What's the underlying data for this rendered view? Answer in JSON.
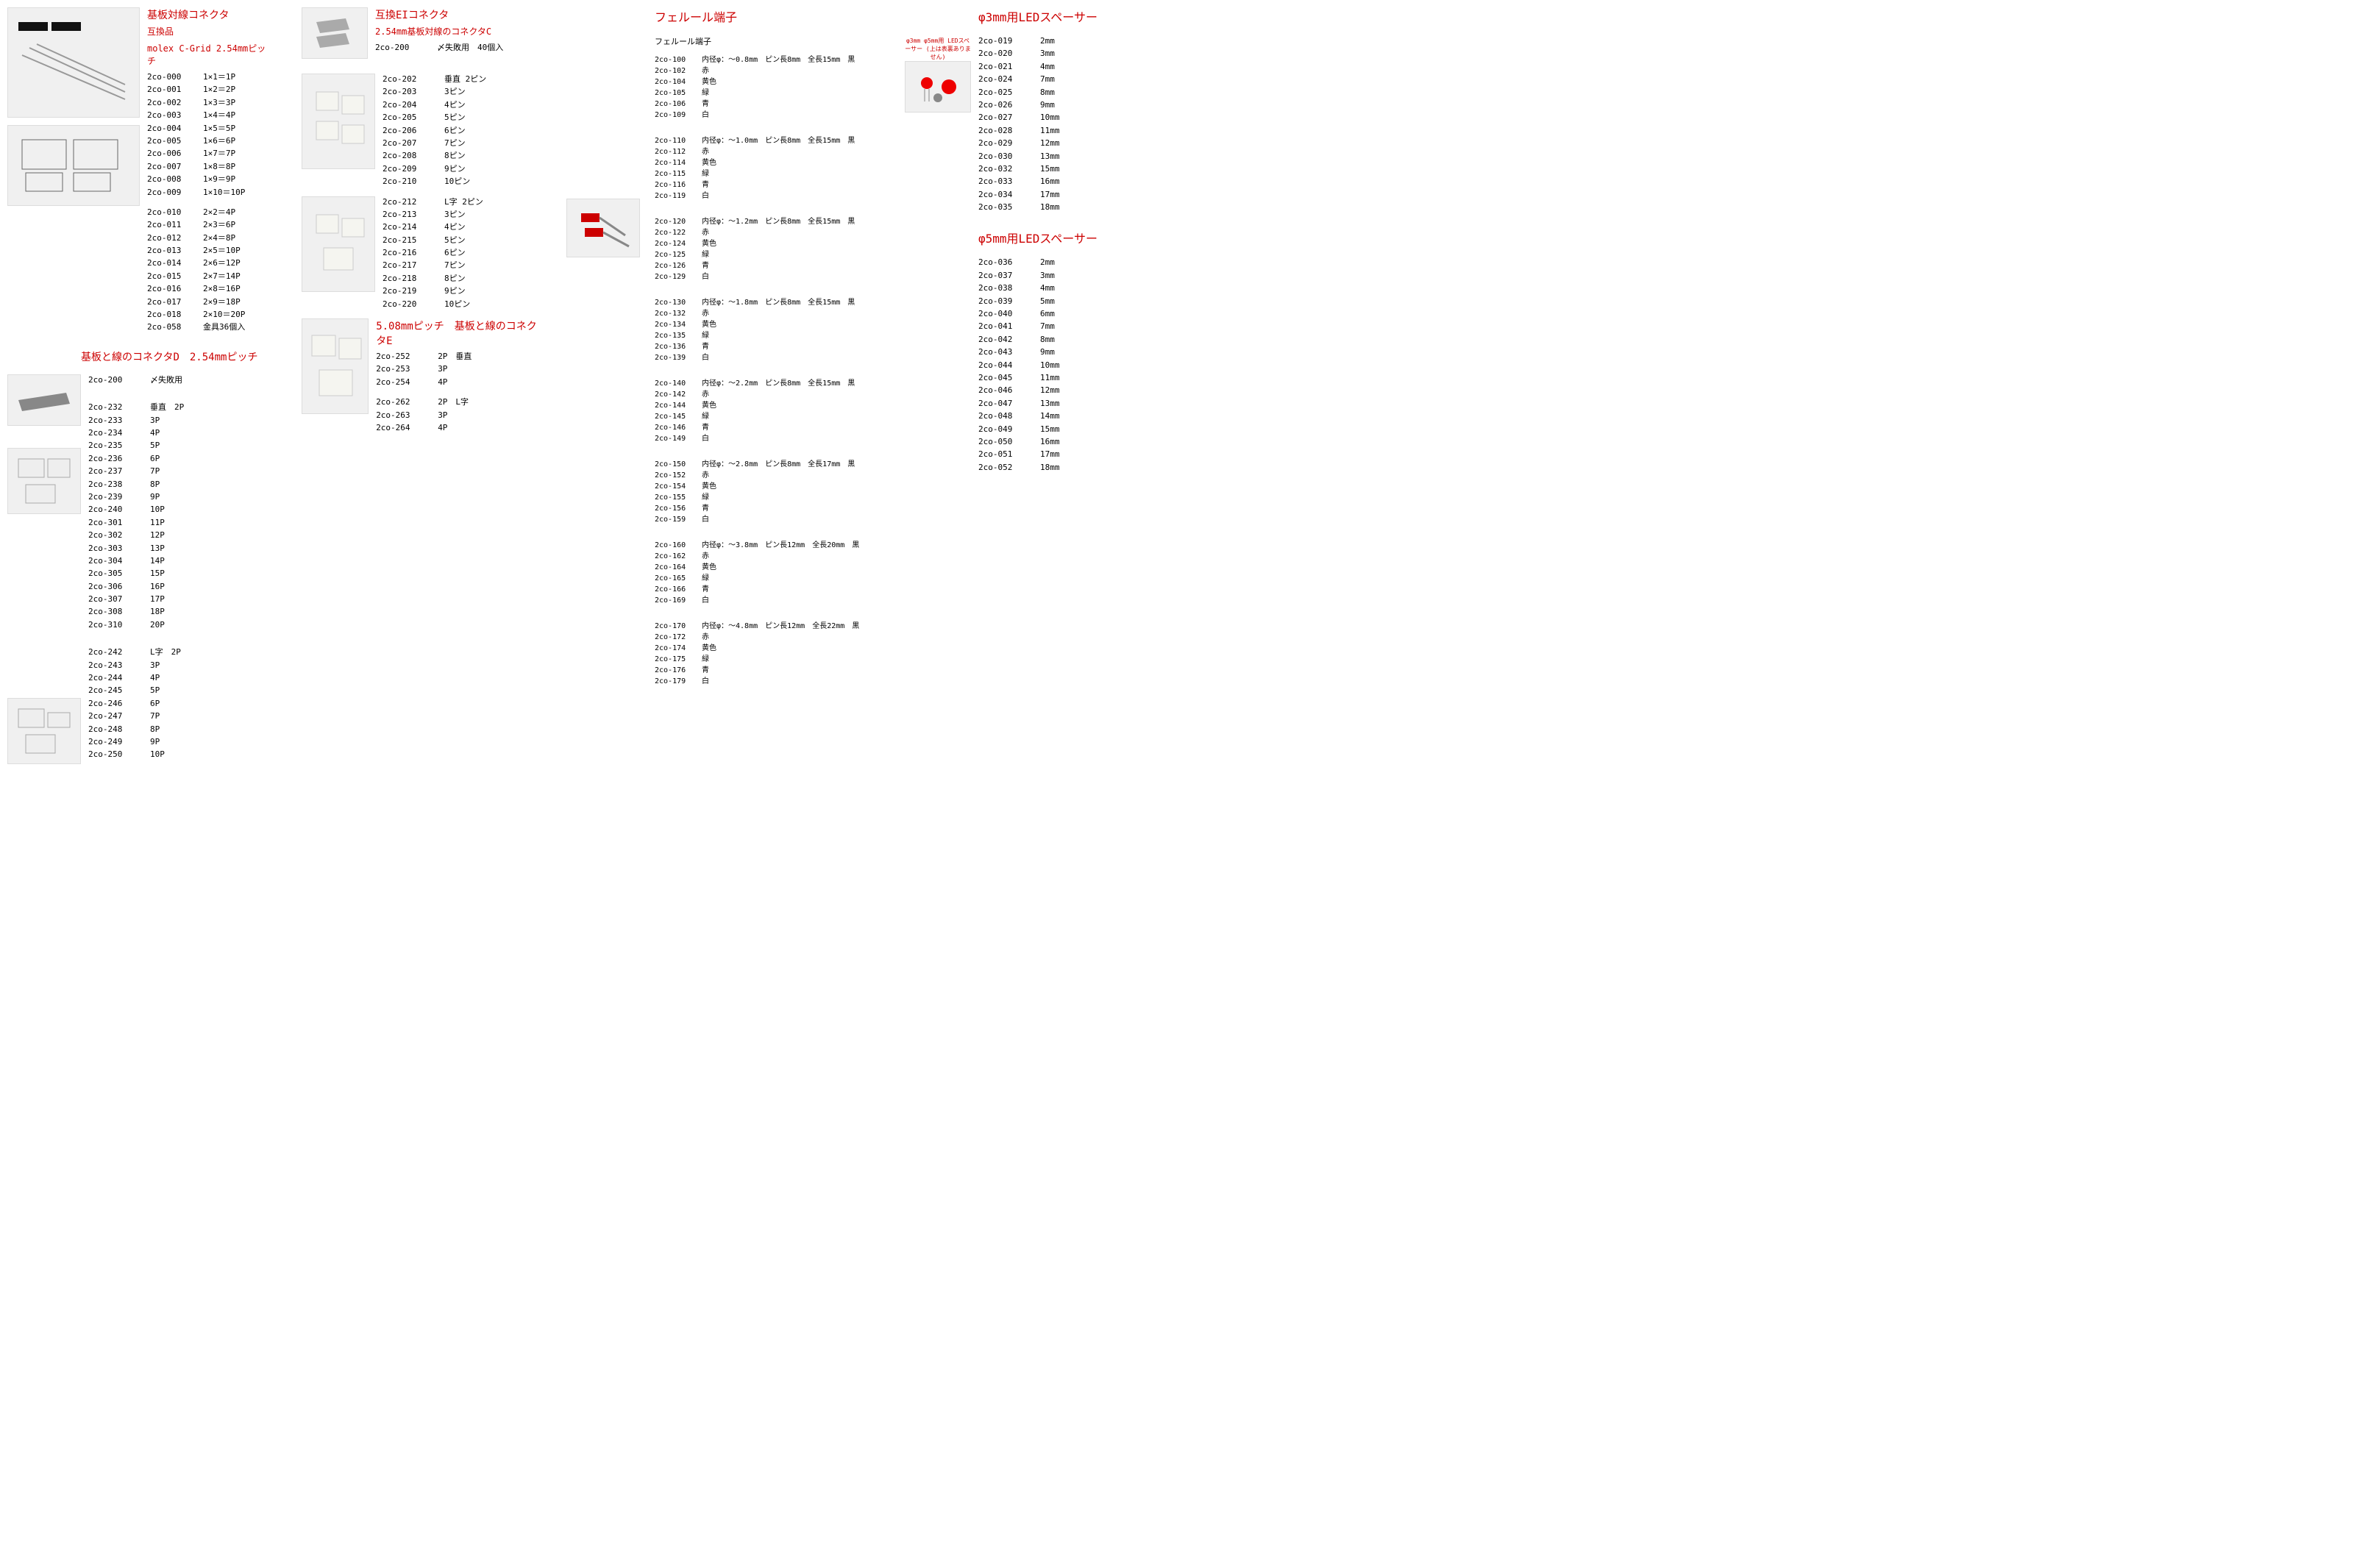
{
  "colors": {
    "title": "#cc0000",
    "text": "#000000",
    "bg": "#ffffff"
  },
  "col1": {
    "sectionA": {
      "title": "基板対線コネクタ",
      "sub1": "互換品",
      "sub2": "molex C-Grid 2.54mmピッチ",
      "itemsA": [
        {
          "code": "2co-000",
          "val": "1×1＝1P"
        },
        {
          "code": "2co-001",
          "val": "1×2＝2P"
        },
        {
          "code": "2co-002",
          "val": "1×3＝3P"
        },
        {
          "code": "2co-003",
          "val": "1×4＝4P"
        },
        {
          "code": "2co-004",
          "val": "1×5＝5P"
        },
        {
          "code": "2co-005",
          "val": "1×6＝6P"
        },
        {
          "code": "2co-006",
          "val": "1×7＝7P"
        },
        {
          "code": "2co-007",
          "val": "1×8＝8P"
        },
        {
          "code": "2co-008",
          "val": "1×9＝9P"
        },
        {
          "code": "2co-009",
          "val": "1×10＝10P"
        }
      ],
      "itemsB": [
        {
          "code": "2co-010",
          "val": "2×2＝4P"
        },
        {
          "code": "2co-011",
          "val": "2×3＝6P"
        },
        {
          "code": "2co-012",
          "val": "2×4＝8P"
        },
        {
          "code": "2co-013",
          "val": "2×5＝10P"
        },
        {
          "code": "2co-014",
          "val": "2×6＝12P"
        },
        {
          "code": "2co-015",
          "val": "2×7＝14P"
        },
        {
          "code": "2co-016",
          "val": "2×8＝16P"
        },
        {
          "code": "2co-017",
          "val": "2×9＝18P"
        },
        {
          "code": "2co-018",
          "val": "2×10＝20P"
        },
        {
          "code": "2co-058",
          "val": "金具36個入"
        }
      ]
    },
    "sectionD": {
      "title": "基板と線のコネクタD　2.54mmピッチ",
      "fail": {
        "code": "2co-200",
        "val": "〆失敗用"
      },
      "vertical_label": "垂直",
      "vertical_first_val": "2P",
      "vertical": [
        {
          "code": "2co-232",
          "val": "垂直　2P"
        },
        {
          "code": "2co-233",
          "val": "3P"
        },
        {
          "code": "2co-234",
          "val": "4P"
        },
        {
          "code": "2co-235",
          "val": "5P"
        },
        {
          "code": "2co-236",
          "val": "6P"
        },
        {
          "code": "2co-237",
          "val": "7P"
        },
        {
          "code": "2co-238",
          "val": "8P"
        },
        {
          "code": "2co-239",
          "val": "9P"
        },
        {
          "code": "2co-240",
          "val": "10P"
        },
        {
          "code": "2co-301",
          "val": "11P"
        },
        {
          "code": "2co-302",
          "val": "12P"
        },
        {
          "code": "2co-303",
          "val": "13P"
        },
        {
          "code": "2co-304",
          "val": "14P"
        },
        {
          "code": "2co-305",
          "val": "15P"
        },
        {
          "code": "2co-306",
          "val": "16P"
        },
        {
          "code": "2co-307",
          "val": "17P"
        },
        {
          "code": "2co-308",
          "val": "18P"
        },
        {
          "code": "2co-310",
          "val": "20P"
        }
      ],
      "L": [
        {
          "code": "2co-242",
          "val": "L字　2P"
        },
        {
          "code": "2co-243",
          "val": "3P"
        },
        {
          "code": "2co-244",
          "val": "4P"
        },
        {
          "code": "2co-245",
          "val": "5P"
        },
        {
          "code": "2co-246",
          "val": "6P"
        },
        {
          "code": "2co-247",
          "val": "7P"
        },
        {
          "code": "2co-248",
          "val": "8P"
        },
        {
          "code": "2co-249",
          "val": "9P"
        },
        {
          "code": "2co-250",
          "val": "10P"
        }
      ]
    }
  },
  "col2": {
    "sectionEI": {
      "title": "互換EIコネクタ",
      "sub": "2.54mm基板対線のコネクタC",
      "fail": {
        "code": "2co-200",
        "val": "〆失敗用　40個入"
      },
      "vertical": [
        {
          "code": "2co-202",
          "val": "垂直 2ピン"
        },
        {
          "code": "2co-203",
          "val": "3ピン"
        },
        {
          "code": "2co-204",
          "val": "4ピン"
        },
        {
          "code": "2co-205",
          "val": "5ピン"
        },
        {
          "code": "2co-206",
          "val": "6ピン"
        },
        {
          "code": "2co-207",
          "val": "7ピン"
        },
        {
          "code": "2co-208",
          "val": "8ピン"
        },
        {
          "code": "2co-209",
          "val": "9ピン"
        },
        {
          "code": "2co-210",
          "val": "10ピン"
        }
      ],
      "L": [
        {
          "code": "2co-212",
          "val": "L字 2ピン"
        },
        {
          "code": "2co-213",
          "val": "3ピン"
        },
        {
          "code": "2co-214",
          "val": "4ピン"
        },
        {
          "code": "2co-215",
          "val": "5ピン"
        },
        {
          "code": "2co-216",
          "val": "6ピン"
        },
        {
          "code": "2co-217",
          "val": "7ピン"
        },
        {
          "code": "2co-218",
          "val": "8ピン"
        },
        {
          "code": "2co-219",
          "val": "9ピン"
        },
        {
          "code": "2co-220",
          "val": "10ピン"
        }
      ]
    },
    "sectionE": {
      "title": "5.08mmピッチ　基板と線のコネクタE",
      "vertical": [
        {
          "code": "2co-252",
          "val": "2P　垂直"
        },
        {
          "code": "2co-253",
          "val": "3P"
        },
        {
          "code": "2co-254",
          "val": "4P"
        }
      ],
      "L": [
        {
          "code": "2co-262",
          "val": "2P　L字"
        },
        {
          "code": "2co-263",
          "val": "3P"
        },
        {
          "code": "2co-264",
          "val": "4P"
        }
      ]
    }
  },
  "col3": {
    "title": "フェルール端子",
    "sub": "フェルール端子",
    "groups": [
      {
        "head": {
          "code": "2co-100",
          "val": "内径φ：～0.8mm　ピン長8mm　全長15mm　黒"
        },
        "rows": [
          {
            "code": "2co-102",
            "val": "赤"
          },
          {
            "code": "2co-104",
            "val": "黄色"
          },
          {
            "code": "2co-105",
            "val": "緑"
          },
          {
            "code": "2co-106",
            "val": "青"
          },
          {
            "code": "2co-109",
            "val": "白"
          }
        ]
      },
      {
        "head": {
          "code": "2co-110",
          "val": "内径φ：～1.0mm　ピン長8mm　全長15mm　黒"
        },
        "rows": [
          {
            "code": "2co-112",
            "val": "赤"
          },
          {
            "code": "2co-114",
            "val": "黄色"
          },
          {
            "code": "2co-115",
            "val": "緑"
          },
          {
            "code": "2co-116",
            "val": "青"
          },
          {
            "code": "2co-119",
            "val": "白"
          }
        ]
      },
      {
        "head": {
          "code": "2co-120",
          "val": "内径φ：～1.2mm　ピン長8mm　全長15mm　黒"
        },
        "rows": [
          {
            "code": "2co-122",
            "val": "赤"
          },
          {
            "code": "2co-124",
            "val": "黄色"
          },
          {
            "code": "2co-125",
            "val": "緑"
          },
          {
            "code": "2co-126",
            "val": "青"
          },
          {
            "code": "2co-129",
            "val": "白"
          }
        ]
      },
      {
        "head": {
          "code": "2co-130",
          "val": "内径φ：～1.8mm　ピン長8mm　全長15mm　黒"
        },
        "rows": [
          {
            "code": "2co-132",
            "val": "赤"
          },
          {
            "code": "2co-134",
            "val": "黄色"
          },
          {
            "code": "2co-135",
            "val": "緑"
          },
          {
            "code": "2co-136",
            "val": "青"
          },
          {
            "code": "2co-139",
            "val": "白"
          }
        ]
      },
      {
        "head": {
          "code": "2co-140",
          "val": "内径φ：～2.2mm　ピン長8mm　全長15mm　黒"
        },
        "rows": [
          {
            "code": "2co-142",
            "val": "赤"
          },
          {
            "code": "2co-144",
            "val": "黄色"
          },
          {
            "code": "2co-145",
            "val": "緑"
          },
          {
            "code": "2co-146",
            "val": "青"
          },
          {
            "code": "2co-149",
            "val": "白"
          }
        ]
      },
      {
        "head": {
          "code": "2co-150",
          "val": "内径φ：～2.8mm　ピン長8mm　全長17mm　黒"
        },
        "rows": [
          {
            "code": "2co-152",
            "val": "赤"
          },
          {
            "code": "2co-154",
            "val": "黄色"
          },
          {
            "code": "2co-155",
            "val": "緑"
          },
          {
            "code": "2co-156",
            "val": "青"
          },
          {
            "code": "2co-159",
            "val": "白"
          }
        ]
      },
      {
        "head": {
          "code": "2co-160",
          "val": "内径φ：～3.8mm　ピン長12mm　全長20mm　黒"
        },
        "rows": [
          {
            "code": "2co-162",
            "val": "赤"
          },
          {
            "code": "2co-164",
            "val": "黄色"
          },
          {
            "code": "2co-165",
            "val": "緑"
          },
          {
            "code": "2co-166",
            "val": "青"
          },
          {
            "code": "2co-169",
            "val": "白"
          }
        ]
      },
      {
        "head": {
          "code": "2co-170",
          "val": "内径φ：～4.8mm　ピン長12mm　全長22mm　黒"
        },
        "rows": [
          {
            "code": "2co-172",
            "val": "赤"
          },
          {
            "code": "2co-174",
            "val": "黄色"
          },
          {
            "code": "2co-175",
            "val": "緑"
          },
          {
            "code": "2co-176",
            "val": "青"
          },
          {
            "code": "2co-179",
            "val": "白"
          }
        ]
      }
    ]
  },
  "col4": {
    "led3": {
      "title": "φ3mm用LEDスペーサー",
      "rows": [
        {
          "code": "2co-019",
          "val": "2mm"
        },
        {
          "code": "2co-020",
          "val": "3mm"
        },
        {
          "code": "2co-021",
          "val": "4mm"
        },
        {
          "code": "2co-024",
          "val": "7mm"
        },
        {
          "code": "2co-025",
          "val": "8mm"
        },
        {
          "code": "2co-026",
          "val": "9mm"
        },
        {
          "code": "2co-027",
          "val": "10mm"
        },
        {
          "code": "2co-028",
          "val": "11mm"
        },
        {
          "code": "2co-029",
          "val": "12mm"
        },
        {
          "code": "2co-030",
          "val": "13mm"
        },
        {
          "code": "2co-032",
          "val": "15mm"
        },
        {
          "code": "2co-033",
          "val": "16mm"
        },
        {
          "code": "2co-034",
          "val": "17mm"
        },
        {
          "code": "2co-035",
          "val": "18mm"
        }
      ]
    },
    "led5": {
      "title": "φ5mm用LEDスペーサー",
      "rows": [
        {
          "code": "2co-036",
          "val": "2mm"
        },
        {
          "code": "2co-037",
          "val": "3mm"
        },
        {
          "code": "2co-038",
          "val": "4mm"
        },
        {
          "code": "2co-039",
          "val": "5mm"
        },
        {
          "code": "2co-040",
          "val": "6mm"
        },
        {
          "code": "2co-041",
          "val": "7mm"
        },
        {
          "code": "2co-042",
          "val": "8mm"
        },
        {
          "code": "2co-043",
          "val": "9mm"
        },
        {
          "code": "2co-044",
          "val": "10mm"
        },
        {
          "code": "2co-045",
          "val": "11mm"
        },
        {
          "code": "2co-046",
          "val": "12mm"
        },
        {
          "code": "2co-047",
          "val": "13mm"
        },
        {
          "code": "2co-048",
          "val": "14mm"
        },
        {
          "code": "2co-049",
          "val": "15mm"
        },
        {
          "code": "2co-050",
          "val": "16mm"
        },
        {
          "code": "2co-051",
          "val": "17mm"
        },
        {
          "code": "2co-052",
          "val": "18mm"
        }
      ]
    },
    "imgnote": "φ3mm φ5mm用 LEDスペーサー\n(上は表裏ありません)"
  }
}
